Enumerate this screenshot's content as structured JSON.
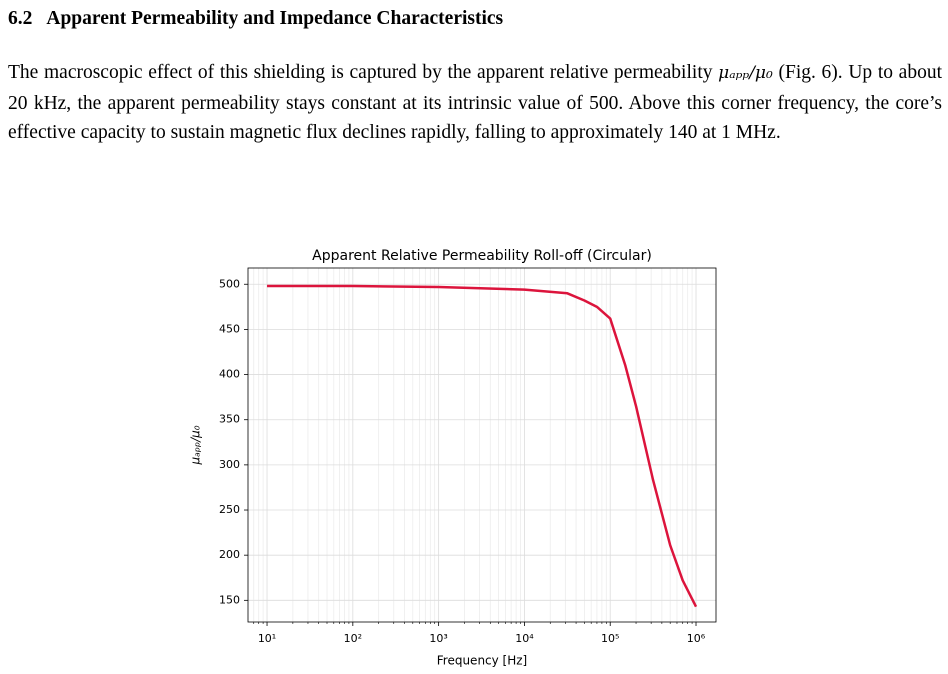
{
  "section": {
    "number": "6.2",
    "title": "Apparent Permeability and Impedance Characteristics"
  },
  "paragraph": {
    "before": "The macroscopic effect of this shielding is captured by the apparent relative permeability",
    "math": "μₐₚₚ/μ₀",
    "after": "(Fig. 6). Up to about 20 kHz, the apparent permeability stays constant at its intrinsic value of 500. Above this corner frequency, the core’s effective capacity to sustain magnetic flux declines rapidly, falling to approximately 140 at 1 MHz."
  },
  "chart_data": {
    "type": "line",
    "title": "Apparent Relative Permeability Roll-off (Circular)",
    "xlabel": "Frequency [Hz]",
    "ylabel": "μₐₚₚ/μ₀",
    "x": [
      10,
      100,
      1000,
      10000,
      31623,
      50000,
      70000,
      100000,
      150000,
      200000,
      316228,
      500000,
      700000,
      1000000
    ],
    "values": [
      498,
      498,
      497,
      494,
      490,
      482,
      475,
      462,
      410,
      365,
      283,
      211,
      172,
      143
    ],
    "color": "#dc143c",
    "xscale": "log",
    "xlim": [
      6,
      1710000
    ],
    "xticks": [
      {
        "value": 10,
        "label": "10¹"
      },
      {
        "value": 100,
        "label": "10²"
      },
      {
        "value": 1000,
        "label": "10³"
      },
      {
        "value": 10000,
        "label": "10⁴"
      },
      {
        "value": 100000,
        "label": "10⁵"
      },
      {
        "value": 1000000,
        "label": "10⁶"
      }
    ],
    "ylim": [
      126,
      518
    ],
    "yticks": [
      150,
      200,
      250,
      300,
      350,
      400,
      450,
      500
    ],
    "grid": true,
    "minor_grid": true
  }
}
